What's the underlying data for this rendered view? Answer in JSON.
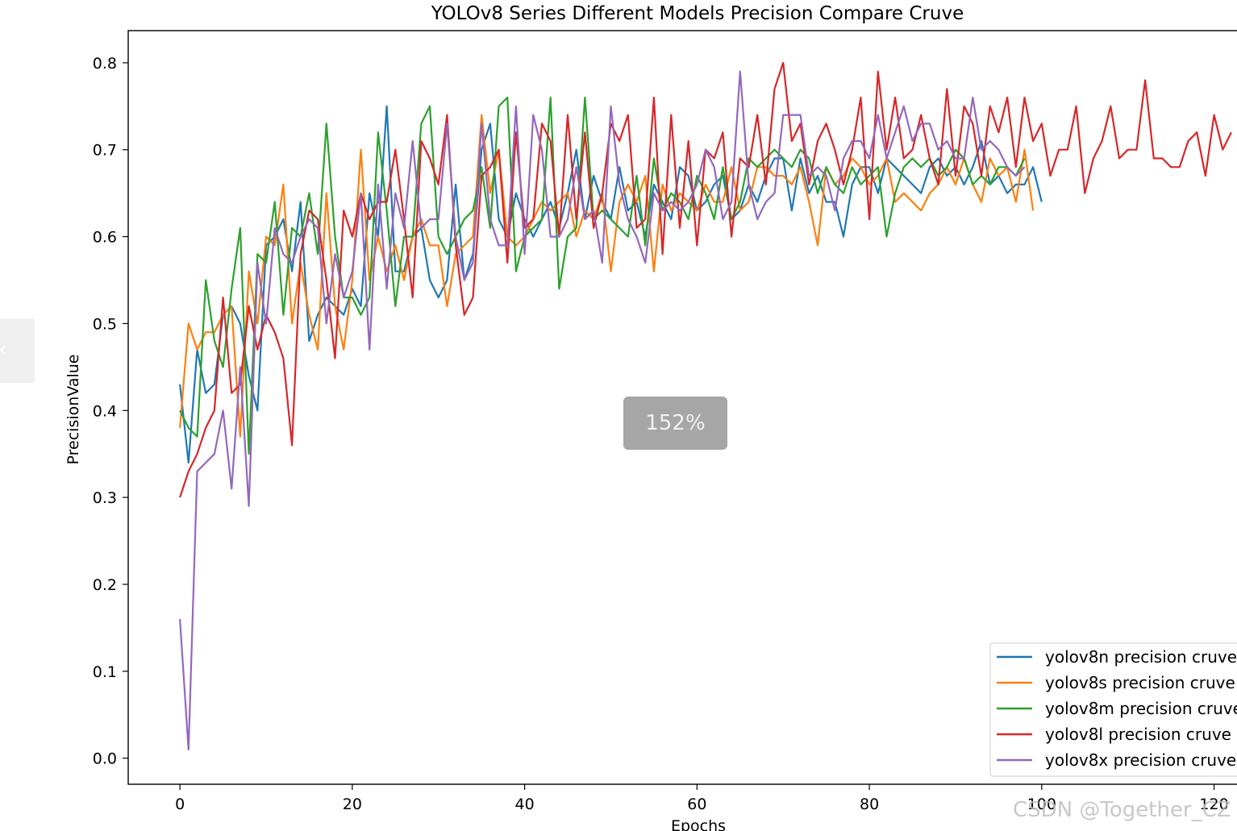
{
  "chart_data": {
    "type": "line",
    "title": "YOLOv8 Series Different Models Precision Compare Cruve",
    "xlabel": "Epochs",
    "ylabel": "PrecisionValue",
    "xlim": [
      -6,
      125
    ],
    "ylim": [
      -0.03,
      0.837
    ],
    "xticks": [
      0,
      20,
      40,
      60,
      80,
      100,
      120
    ],
    "yticks": [
      0.0,
      0.1,
      0.2,
      0.3,
      0.4,
      0.5,
      0.6,
      0.7,
      0.8
    ],
    "xtick_labels": [
      "0",
      "20",
      "40",
      "60",
      "80",
      "100",
      "120"
    ],
    "ytick_labels": [
      "0.0",
      "0.1",
      "0.2",
      "0.3",
      "0.4",
      "0.5",
      "0.6",
      "0.7",
      "0.8"
    ],
    "grid": false,
    "legend": "bottom-right",
    "series": [
      {
        "name": "yolov8n precision cruve",
        "color": "#1f77b4",
        "x_start": 0,
        "values": [
          0.43,
          0.34,
          0.47,
          0.42,
          0.43,
          0.51,
          0.52,
          0.5,
          0.44,
          0.4,
          0.59,
          0.6,
          0.62,
          0.56,
          0.64,
          0.48,
          0.51,
          0.53,
          0.52,
          0.51,
          0.54,
          0.52,
          0.65,
          0.6,
          0.75,
          0.56,
          0.56,
          0.6,
          0.61,
          0.55,
          0.53,
          0.55,
          0.66,
          0.55,
          0.58,
          0.7,
          0.73,
          0.62,
          0.6,
          0.65,
          0.62,
          0.6,
          0.62,
          0.64,
          0.61,
          0.65,
          0.7,
          0.62,
          0.67,
          0.64,
          0.62,
          0.68,
          0.63,
          0.64,
          0.6,
          0.66,
          0.64,
          0.62,
          0.68,
          0.67,
          0.63,
          0.64,
          0.66,
          0.67,
          0.62,
          0.63,
          0.66,
          0.64,
          0.67,
          0.69,
          0.69,
          0.63,
          0.69,
          0.65,
          0.67,
          0.64,
          0.64,
          0.6,
          0.66,
          0.68,
          0.68,
          0.65,
          0.69,
          0.68,
          0.67,
          0.66,
          0.65,
          0.68,
          0.69,
          0.67,
          0.68,
          0.66,
          0.68,
          0.71,
          0.66,
          0.67,
          0.65,
          0.66,
          0.66,
          0.68,
          0.64
        ]
      },
      {
        "name": "yolov8s precision cruve",
        "color": "#ff7f0e",
        "x_start": 0,
        "values": [
          0.38,
          0.5,
          0.47,
          0.49,
          0.49,
          0.51,
          0.52,
          0.37,
          0.56,
          0.5,
          0.6,
          0.59,
          0.66,
          0.5,
          0.57,
          0.51,
          0.47,
          0.65,
          0.52,
          0.47,
          0.55,
          0.7,
          0.55,
          0.6,
          0.56,
          0.59,
          0.55,
          0.6,
          0.62,
          0.59,
          0.59,
          0.52,
          0.58,
          0.59,
          0.6,
          0.74,
          0.65,
          0.7,
          0.6,
          0.59,
          0.6,
          0.62,
          0.64,
          0.63,
          0.64,
          0.65,
          0.6,
          0.63,
          0.62,
          0.65,
          0.56,
          0.64,
          0.66,
          0.64,
          0.67,
          0.56,
          0.66,
          0.63,
          0.65,
          0.64,
          0.63,
          0.66,
          0.64,
          0.64,
          0.68,
          0.63,
          0.64,
          0.68,
          0.68,
          0.67,
          0.67,
          0.66,
          0.68,
          0.64,
          0.59,
          0.68,
          0.66,
          0.67,
          0.69,
          0.68,
          0.66,
          0.67,
          0.69,
          0.64,
          0.65,
          0.64,
          0.63,
          0.65,
          0.66,
          0.68,
          0.66,
          0.69,
          0.66,
          0.64,
          0.69,
          0.67,
          0.68,
          0.64,
          0.7,
          0.63
        ]
      },
      {
        "name": "yolov8m precision cruve",
        "color": "#2ca02c",
        "x_start": 0,
        "values": [
          0.4,
          0.38,
          0.37,
          0.55,
          0.48,
          0.45,
          0.54,
          0.61,
          0.35,
          0.58,
          0.57,
          0.64,
          0.51,
          0.61,
          0.6,
          0.65,
          0.58,
          0.73,
          0.6,
          0.53,
          0.53,
          0.51,
          0.53,
          0.72,
          0.63,
          0.52,
          0.6,
          0.6,
          0.73,
          0.75,
          0.6,
          0.58,
          0.6,
          0.62,
          0.63,
          0.68,
          0.61,
          0.75,
          0.76,
          0.56,
          0.6,
          0.61,
          0.62,
          0.76,
          0.54,
          0.6,
          0.61,
          0.76,
          0.62,
          0.63,
          0.62,
          0.61,
          0.6,
          0.67,
          0.59,
          0.69,
          0.63,
          0.65,
          0.64,
          0.62,
          0.67,
          0.65,
          0.62,
          0.68,
          0.62,
          0.64,
          0.69,
          0.68,
          0.69,
          0.7,
          0.69,
          0.68,
          0.7,
          0.69,
          0.65,
          0.68,
          0.66,
          0.65,
          0.68,
          0.66,
          0.67,
          0.68,
          0.6,
          0.65,
          0.68,
          0.69,
          0.68,
          0.69,
          0.67,
          0.68,
          0.7,
          0.69,
          0.66,
          0.67,
          0.66,
          0.68,
          0.68,
          0.67,
          0.69
        ]
      },
      {
        "name": "yolov8l precision cruve",
        "color": "#d62728",
        "x_start": 0,
        "values": [
          0.3,
          0.33,
          0.35,
          0.38,
          0.4,
          0.53,
          0.42,
          0.43,
          0.52,
          0.47,
          0.51,
          0.49,
          0.46,
          0.36,
          0.58,
          0.63,
          0.62,
          0.55,
          0.46,
          0.63,
          0.6,
          0.65,
          0.62,
          0.64,
          0.64,
          0.7,
          0.62,
          0.53,
          0.71,
          0.69,
          0.66,
          0.74,
          0.59,
          0.51,
          0.53,
          0.67,
          0.68,
          0.7,
          0.57,
          0.72,
          0.61,
          0.62,
          0.73,
          0.71,
          0.6,
          0.74,
          0.62,
          0.72,
          0.61,
          0.65,
          0.73,
          0.71,
          0.74,
          0.61,
          0.62,
          0.76,
          0.58,
          0.74,
          0.61,
          0.71,
          0.59,
          0.7,
          0.69,
          0.72,
          0.6,
          0.69,
          0.68,
          0.74,
          0.66,
          0.77,
          0.8,
          0.71,
          0.73,
          0.66,
          0.71,
          0.73,
          0.7,
          0.66,
          0.7,
          0.76,
          0.62,
          0.79,
          0.7,
          0.76,
          0.69,
          0.7,
          0.74,
          0.69,
          0.66,
          0.77,
          0.67,
          0.75,
          0.73,
          0.67,
          0.75,
          0.72,
          0.76,
          0.68,
          0.76,
          0.71,
          0.73,
          0.67,
          0.7,
          0.7,
          0.75,
          0.65,
          0.69,
          0.71,
          0.75,
          0.69,
          0.7,
          0.7,
          0.78,
          0.69,
          0.69,
          0.68,
          0.68,
          0.71,
          0.72,
          0.67,
          0.74,
          0.7,
          0.72
        ]
      },
      {
        "name": "yolov8x precision cruve",
        "color": "#9467bd",
        "x_start": 0,
        "values": [
          0.16,
          0.01,
          0.33,
          0.34,
          0.35,
          0.4,
          0.31,
          0.45,
          0.29,
          0.57,
          0.5,
          0.61,
          0.58,
          0.57,
          0.6,
          0.62,
          0.61,
          0.5,
          0.58,
          0.53,
          0.56,
          0.65,
          0.47,
          0.66,
          0.54,
          0.65,
          0.61,
          0.71,
          0.61,
          0.62,
          0.62,
          0.73,
          0.6,
          0.55,
          0.57,
          0.73,
          0.62,
          0.59,
          0.59,
          0.75,
          0.58,
          0.74,
          0.7,
          0.6,
          0.6,
          0.62,
          0.68,
          0.62,
          0.63,
          0.57,
          0.75,
          0.66,
          0.62,
          0.6,
          0.57,
          0.65,
          0.63,
          0.64,
          0.63,
          0.64,
          0.66,
          0.7,
          0.68,
          0.62,
          0.64,
          0.79,
          0.66,
          0.62,
          0.64,
          0.65,
          0.74,
          0.74,
          0.74,
          0.67,
          0.68,
          0.67,
          0.63,
          0.69,
          0.71,
          0.71,
          0.69,
          0.74,
          0.69,
          0.72,
          0.75,
          0.71,
          0.73,
          0.73,
          0.7,
          0.71,
          0.69,
          0.69,
          0.76,
          0.7,
          0.71,
          0.7,
          0.68,
          0.67,
          0.68
        ]
      }
    ]
  },
  "ui": {
    "prev_icon": "‹",
    "zoom_level": "152%",
    "watermark": "CSDN @Together_CZ"
  }
}
